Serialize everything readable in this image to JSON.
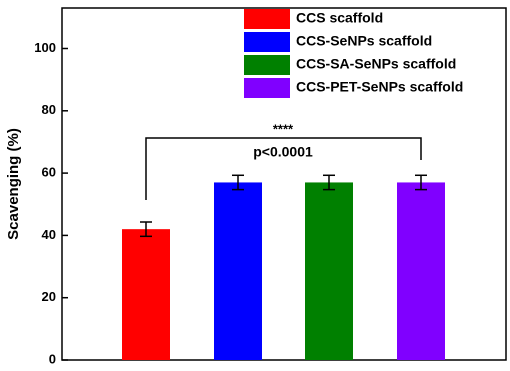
{
  "chart_data": {
    "type": "bar",
    "ylabel": "Scavenging (%)",
    "categories": [
      null
    ],
    "series": [
      {
        "name": "CCS scaffold",
        "color": "#ff0000",
        "values": [
          42
        ],
        "errors": [
          2.3
        ]
      },
      {
        "name": "CCS-SeNPs scaffold",
        "color": "#0000ff",
        "values": [
          57
        ],
        "errors": [
          2.3
        ]
      },
      {
        "name": "CCS-SA-SeNPs scaffold",
        "color": "#008000",
        "values": [
          57
        ],
        "errors": [
          2.3
        ]
      },
      {
        "name": "CCS-PET-SeNPs scaffold",
        "color": "#8000ff",
        "values": [
          57
        ],
        "errors": [
          2.3
        ]
      }
    ],
    "annotations": [
      "****",
      "p<0.0001"
    ],
    "ylim": [
      0,
      113
    ],
    "yticks": [
      0,
      20,
      40,
      60,
      80,
      100
    ],
    "grid": false,
    "legend": "top-right"
  }
}
